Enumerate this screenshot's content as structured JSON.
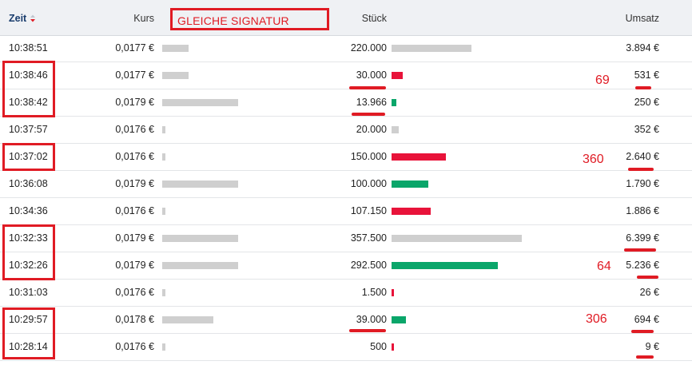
{
  "header": {
    "zeit": "Zeit",
    "kurs": "Kurs",
    "stueck": "Stück",
    "umsatz": "Umsatz",
    "signature_note": "GLEICHE SIGNATUR"
  },
  "colors": {
    "buy": "#0aa66a",
    "sell": "#e8133a",
    "neutral": "#cfcfcf",
    "annotation": "#e01b24"
  },
  "trades": [
    {
      "time": "10:38:51",
      "price": "0,0177 €",
      "qty": "220.000",
      "volume": "3.894 €",
      "price_level": 0.26,
      "qty_share": 0.615,
      "side": "neutral"
    },
    {
      "time": "10:38:46",
      "price": "0,0177 €",
      "qty": "30.000",
      "volume": "531 €",
      "price_level": 0.26,
      "qty_share": 0.084,
      "side": "sell"
    },
    {
      "time": "10:38:42",
      "price": "0,0179 €",
      "qty": "13.966",
      "volume": "250 €",
      "price_level": 0.76,
      "qty_share": 0.039,
      "side": "buy"
    },
    {
      "time": "10:37:57",
      "price": "0,0176 €",
      "qty": "20.000",
      "volume": "352 €",
      "price_level": 0.03,
      "qty_share": 0.056,
      "side": "neutral"
    },
    {
      "time": "10:37:02",
      "price": "0,0176 €",
      "qty": "150.000",
      "volume": "2.640 €",
      "price_level": 0.03,
      "qty_share": 0.42,
      "side": "sell"
    },
    {
      "time": "10:36:08",
      "price": "0,0179 €",
      "qty": "100.000",
      "volume": "1.790 €",
      "price_level": 0.76,
      "qty_share": 0.28,
      "side": "buy"
    },
    {
      "time": "10:34:36",
      "price": "0,0176 €",
      "qty": "107.150",
      "volume": "1.886 €",
      "price_level": 0.03,
      "qty_share": 0.3,
      "side": "sell"
    },
    {
      "time": "10:32:33",
      "price": "0,0179 €",
      "qty": "357.500",
      "volume": "6.399 €",
      "price_level": 0.76,
      "qty_share": 1.0,
      "side": "neutral"
    },
    {
      "time": "10:32:26",
      "price": "0,0179 €",
      "qty": "292.500",
      "volume": "5.236 €",
      "price_level": 0.76,
      "qty_share": 0.818,
      "side": "buy"
    },
    {
      "time": "10:31:03",
      "price": "0,0176 €",
      "qty": "1.500",
      "volume": "26 €",
      "price_level": 0.03,
      "qty_share": 0.012,
      "side": "sell"
    },
    {
      "time": "10:29:57",
      "price": "0,0178 €",
      "qty": "39.000",
      "volume": "694 €",
      "price_level": 0.51,
      "qty_share": 0.11,
      "side": "buy"
    },
    {
      "time": "10:28:14",
      "price": "0,0176 €",
      "qty": "500",
      "volume": "9 €",
      "price_level": 0.03,
      "qty_share": 0.012,
      "side": "sell"
    }
  ],
  "annotations": {
    "69": "69",
    "360": "360",
    "64": "64",
    "306": "306"
  }
}
